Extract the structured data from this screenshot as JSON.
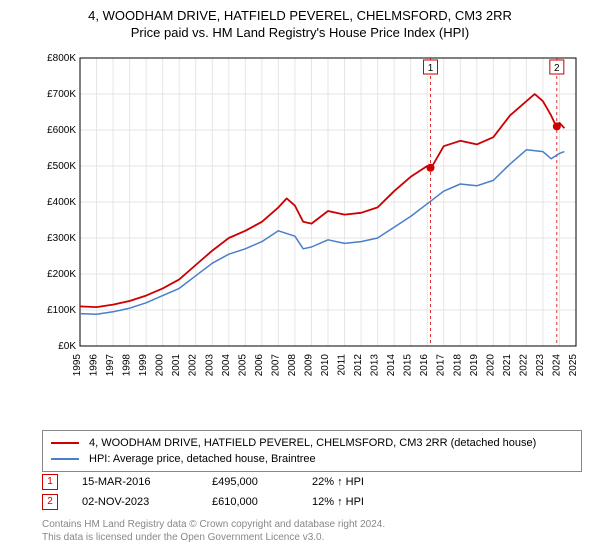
{
  "title": {
    "line1": "4, WOODHAM DRIVE, HATFIELD PEVEREL, CHELMSFORD, CM3 2RR",
    "line2": "Price paid vs. HM Land Registry's House Price Index (HPI)"
  },
  "chart": {
    "type": "line",
    "background_color": "#ffffff",
    "grid_color": "#e6e6e6",
    "axis_color": "#000000",
    "ylim": [
      0,
      800
    ],
    "ytick_step": 100,
    "ytick_prefix": "£",
    "ytick_suffix": "K",
    "xlim": [
      1995,
      2025
    ],
    "xtick_step": 1,
    "xtick_rotate": -90,
    "label_fontsize": 10,
    "series": [
      {
        "name": "property",
        "label": "4, WOODHAM DRIVE, HATFIELD PEVEREL, CHELMSFORD, CM3 2RR (detached house)",
        "color": "#cc0000",
        "line_width": 1.8,
        "points": [
          [
            1995,
            110
          ],
          [
            1996,
            108
          ],
          [
            1997,
            115
          ],
          [
            1998,
            125
          ],
          [
            1999,
            140
          ],
          [
            2000,
            160
          ],
          [
            2001,
            185
          ],
          [
            2002,
            225
          ],
          [
            2003,
            265
          ],
          [
            2004,
            300
          ],
          [
            2005,
            320
          ],
          [
            2006,
            345
          ],
          [
            2007,
            385
          ],
          [
            2007.5,
            410
          ],
          [
            2008,
            390
          ],
          [
            2008.5,
            345
          ],
          [
            2009,
            340
          ],
          [
            2010,
            375
          ],
          [
            2011,
            365
          ],
          [
            2012,
            370
          ],
          [
            2013,
            385
          ],
          [
            2014,
            430
          ],
          [
            2015,
            470
          ],
          [
            2016,
            500
          ],
          [
            2016.25,
            495
          ],
          [
            2017,
            555
          ],
          [
            2018,
            570
          ],
          [
            2019,
            560
          ],
          [
            2020,
            580
          ],
          [
            2021,
            640
          ],
          [
            2022,
            680
          ],
          [
            2022.5,
            700
          ],
          [
            2023,
            680
          ],
          [
            2023.5,
            640
          ],
          [
            2023.8,
            610
          ],
          [
            2024,
            620
          ],
          [
            2024.3,
            605
          ]
        ]
      },
      {
        "name": "hpi",
        "label": "HPI: Average price, detached house, Braintree",
        "color": "#4a7ec8",
        "line_width": 1.5,
        "points": [
          [
            1995,
            90
          ],
          [
            1996,
            88
          ],
          [
            1997,
            95
          ],
          [
            1998,
            105
          ],
          [
            1999,
            120
          ],
          [
            2000,
            140
          ],
          [
            2001,
            160
          ],
          [
            2002,
            195
          ],
          [
            2003,
            230
          ],
          [
            2004,
            255
          ],
          [
            2005,
            270
          ],
          [
            2006,
            290
          ],
          [
            2007,
            320
          ],
          [
            2008,
            305
          ],
          [
            2008.5,
            270
          ],
          [
            2009,
            275
          ],
          [
            2010,
            295
          ],
          [
            2011,
            285
          ],
          [
            2012,
            290
          ],
          [
            2013,
            300
          ],
          [
            2014,
            330
          ],
          [
            2015,
            360
          ],
          [
            2016,
            395
          ],
          [
            2017,
            430
          ],
          [
            2018,
            450
          ],
          [
            2019,
            445
          ],
          [
            2020,
            460
          ],
          [
            2021,
            505
          ],
          [
            2022,
            545
          ],
          [
            2023,
            540
          ],
          [
            2023.5,
            520
          ],
          [
            2024,
            535
          ],
          [
            2024.3,
            540
          ]
        ]
      }
    ],
    "markers": [
      {
        "id": "1",
        "x": 2016.2,
        "y": 495,
        "badge_x": 2016.2,
        "color": "#cc0000"
      },
      {
        "id": "2",
        "x": 2023.84,
        "y": 610,
        "badge_x": 2023.84,
        "color": "#cc0000"
      }
    ]
  },
  "sales": [
    {
      "id": "1",
      "date": "15-MAR-2016",
      "price": "£495,000",
      "pct": "22% ↑ HPI"
    },
    {
      "id": "2",
      "date": "02-NOV-2023",
      "price": "£610,000",
      "pct": "12% ↑ HPI"
    }
  ],
  "footer": {
    "line1": "Contains HM Land Registry data © Crown copyright and database right 2024.",
    "line2": "This data is licensed under the Open Government Licence v3.0."
  }
}
